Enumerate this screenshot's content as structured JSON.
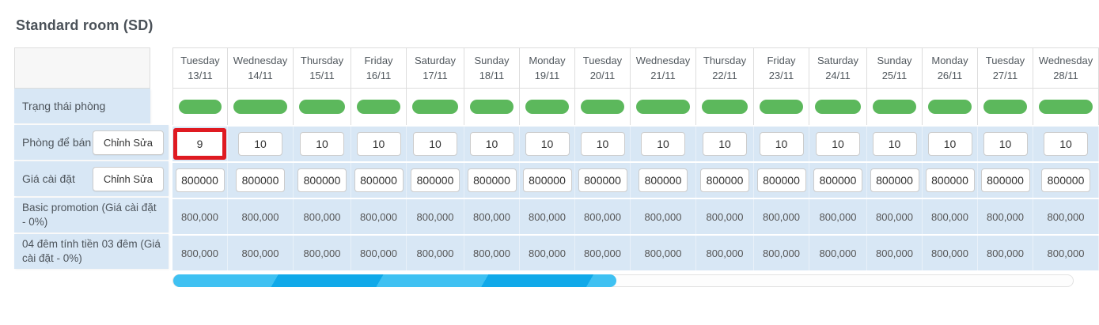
{
  "page": {
    "title": "Standard room (SD)"
  },
  "left_panel": {
    "rows": [
      {
        "label": "Trạng thái phòng"
      },
      {
        "label": "Phòng để bán",
        "button": "Chỉnh Sửa"
      },
      {
        "label": "Giá cài đặt",
        "button": "Chỉnh Sửa"
      },
      {
        "label": "Basic promotion (Giá cài đặt - 0%)"
      },
      {
        "label": "04 đêm tính tiền 03 đêm (Giá cài đặt - 0%)"
      }
    ]
  },
  "calendar": {
    "columns": [
      {
        "day": "Tuesday",
        "date": "13/11"
      },
      {
        "day": "Wednesday",
        "date": "14/11"
      },
      {
        "day": "Thursday",
        "date": "15/11"
      },
      {
        "day": "Friday",
        "date": "16/11"
      },
      {
        "day": "Saturday",
        "date": "17/11"
      },
      {
        "day": "Sunday",
        "date": "18/11"
      },
      {
        "day": "Monday",
        "date": "19/11"
      },
      {
        "day": "Tuesday",
        "date": "20/11"
      },
      {
        "day": "Wednesday",
        "date": "21/11"
      },
      {
        "day": "Thursday",
        "date": "22/11"
      },
      {
        "day": "Friday",
        "date": "23/11"
      },
      {
        "day": "Saturday",
        "date": "24/11"
      },
      {
        "day": "Sunday",
        "date": "25/11"
      },
      {
        "day": "Monday",
        "date": "26/11"
      },
      {
        "day": "Tuesday",
        "date": "27/11"
      },
      {
        "day": "Wednesday",
        "date": "28/11"
      }
    ],
    "status": [
      "available",
      "available",
      "available",
      "available",
      "available",
      "available",
      "available",
      "available",
      "available",
      "available",
      "available",
      "available",
      "available",
      "available",
      "available",
      "available"
    ],
    "rooms_to_sell": [
      "9",
      "10",
      "10",
      "10",
      "10",
      "10",
      "10",
      "10",
      "10",
      "10",
      "10",
      "10",
      "10",
      "10",
      "10",
      "10"
    ],
    "highlighted_room_index": 0,
    "prices": [
      "800000",
      "800000",
      "800000",
      "800000",
      "800000",
      "800000",
      "800000",
      "800000",
      "800000",
      "800000",
      "800000",
      "800000",
      "800000",
      "800000",
      "800000",
      "800000"
    ],
    "basic_promotion": [
      "800,000",
      "800,000",
      "800,000",
      "800,000",
      "800,000",
      "800,000",
      "800,000",
      "800,000",
      "800,000",
      "800,000",
      "800,000",
      "800,000",
      "800,000",
      "800,000",
      "800,000",
      "800,000"
    ],
    "four_nights_promotion": [
      "800,000",
      "800,000",
      "800,000",
      "800,000",
      "800,000",
      "800,000",
      "800,000",
      "800,000",
      "800,000",
      "800,000",
      "800,000",
      "800,000",
      "800,000",
      "800,000",
      "800,000",
      "800,000"
    ]
  },
  "colors": {
    "status_green": "#5cb85c",
    "highlight_red": "#df1a21",
    "row_blue": "#d8e7f5",
    "scrollbar_light": "#3fc1f2",
    "scrollbar_dark": "#10a9e9"
  }
}
